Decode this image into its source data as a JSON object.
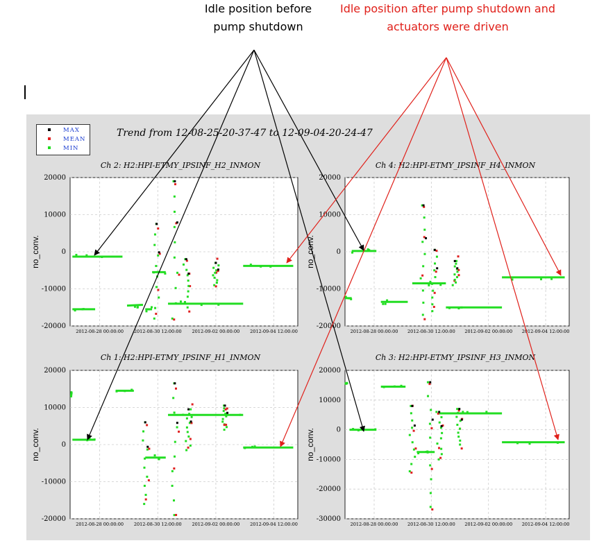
{
  "annotations": {
    "black_note": [
      "Idle position before",
      "pump shutdown"
    ],
    "red_note": [
      "Idle position after pump shutdown and",
      "actuators were driven"
    ],
    "colors": {
      "black_note": "#000000",
      "red_note": "#e0201a"
    }
  },
  "legend": [
    {
      "label": "MAX",
      "color": "#000000"
    },
    {
      "label": "MEAN",
      "color": "#e02020"
    },
    {
      "label": "MIN",
      "color": "#22dd22"
    }
  ],
  "trend_title": "Trend from 12-08-25-20-37-47 to 12-09-04-20-24-47",
  "x_tick_labels": [
    "2012-08-28 00:00:00",
    "2012-08-30 12:00:00",
    "2012-09-02 00:00:00",
    "2012-09-04 12:00:00"
  ],
  "chart_data": [
    {
      "type": "scatter",
      "title": "Ch 2: H2:HPI-ETMY_IPSINF_H2_INMON",
      "ylabel": "no_conv.",
      "ylim": [
        -20000,
        20000
      ],
      "yticks": [
        20000,
        10000,
        0,
        -10000,
        -20000
      ],
      "x_days_range": [
        0,
        10
      ],
      "grid": true,
      "segments": [
        {
          "x": [
            0.1,
            1.1
          ],
          "y": [
            -15500,
            -15500
          ]
        },
        {
          "x": [
            0.1,
            2.3
          ],
          "y": [
            -1300,
            -1300
          ]
        },
        {
          "x": [
            2.5,
            3.2
          ],
          "y": [
            -14500,
            -14300
          ]
        },
        {
          "x": [
            3.3,
            3.6
          ],
          "y": [
            -15500,
            -15500
          ]
        },
        {
          "x": [
            3.6,
            4.2
          ],
          "y": [
            -5500,
            -5500
          ]
        },
        {
          "x": [
            4.3,
            7.6
          ],
          "y": [
            -14000,
            -14000
          ]
        },
        {
          "x": [
            7.6,
            9.8
          ],
          "y": [
            -3800,
            -3800
          ]
        }
      ],
      "spikes": [
        {
          "x": 3.8,
          "max": 7500,
          "min": -18000
        },
        {
          "x": 4.6,
          "max": 19000,
          "min": -18000
        },
        {
          "x": 5.1,
          "max": -2000,
          "min": -15000
        },
        {
          "x": 6.4,
          "max": -3000,
          "min": -9000
        }
      ]
    },
    {
      "type": "scatter",
      "title": "Ch 4: H2:HPI-ETMY_IPSINF_H4_INMON",
      "ylabel": "no_conv.",
      "ylim": [
        -20000,
        20000
      ],
      "yticks": [
        20000,
        10000,
        0,
        -10000,
        -20000
      ],
      "x_days_range": [
        0,
        10
      ],
      "grid": true,
      "segments": [
        {
          "x": [
            0.0,
            0.3
          ],
          "y": [
            -12500,
            -12500
          ]
        },
        {
          "x": [
            0.3,
            1.4
          ],
          "y": [
            200,
            200
          ]
        },
        {
          "x": [
            1.6,
            2.8
          ],
          "y": [
            -13500,
            -13500
          ]
        },
        {
          "x": [
            3.0,
            4.5
          ],
          "y": [
            -8500,
            -8500
          ]
        },
        {
          "x": [
            4.5,
            7.0
          ],
          "y": [
            -15000,
            -15000
          ]
        },
        {
          "x": [
            7.0,
            9.8
          ],
          "y": [
            -6900,
            -6900
          ]
        }
      ],
      "spikes": [
        {
          "x": 3.5,
          "max": 12500,
          "min": -17000
        },
        {
          "x": 4.0,
          "max": 500,
          "min": -16000
        },
        {
          "x": 4.9,
          "max": -2500,
          "min": -9000
        }
      ]
    },
    {
      "type": "scatter",
      "title": "Ch 1: H2:HPI-ETMY_IPSINF_H1_INMON",
      "ylabel": "no_conv.",
      "ylim": [
        -20000,
        20000
      ],
      "yticks": [
        20000,
        10000,
        0,
        -10000,
        -20000
      ],
      "x_days_range": [
        0,
        10
      ],
      "grid": true,
      "segments": [
        {
          "x": [
            0.0,
            0.1
          ],
          "y": [
            13500,
            13500
          ]
        },
        {
          "x": [
            0.1,
            1.1
          ],
          "y": [
            1300,
            1300
          ]
        },
        {
          "x": [
            2.0,
            2.8
          ],
          "y": [
            14500,
            14500
          ]
        },
        {
          "x": [
            3.3,
            4.2
          ],
          "y": [
            -3500,
            -3500
          ]
        },
        {
          "x": [
            4.3,
            7.6
          ],
          "y": [
            8000,
            8000
          ]
        },
        {
          "x": [
            7.6,
            9.8
          ],
          "y": [
            -800,
            -800
          ]
        }
      ],
      "spikes": [
        {
          "x": 3.3,
          "max": 6000,
          "min": -16000
        },
        {
          "x": 4.6,
          "max": 16500,
          "min": -19000
        },
        {
          "x": 5.2,
          "max": 9500,
          "min": -1500
        },
        {
          "x": 6.8,
          "max": 10500,
          "min": 4000
        }
      ]
    },
    {
      "type": "scatter",
      "title": "Ch 3: H2:HPI-ETMY_IPSINF_H3_INMON",
      "ylabel": "no_conv.",
      "ylim": [
        -30000,
        20000
      ],
      "yticks": [
        20000,
        10000,
        0,
        -10000,
        -20000,
        -30000
      ],
      "x_days_range": [
        0,
        10
      ],
      "grid": true,
      "segments": [
        {
          "x": [
            0.0,
            0.1
          ],
          "y": [
            15500,
            15500
          ]
        },
        {
          "x": [
            0.2,
            1.4
          ],
          "y": [
            0,
            0
          ]
        },
        {
          "x": [
            1.6,
            2.7
          ],
          "y": [
            14500,
            14500
          ]
        },
        {
          "x": [
            3.2,
            4.0
          ],
          "y": [
            -7500,
            -7500
          ]
        },
        {
          "x": [
            4.2,
            7.0
          ],
          "y": [
            5500,
            5500
          ]
        },
        {
          "x": [
            7.0,
            9.8
          ],
          "y": [
            -4200,
            -4200
          ]
        }
      ],
      "spikes": [
        {
          "x": 3.0,
          "max": 8000,
          "min": -14000
        },
        {
          "x": 3.8,
          "max": 16000,
          "min": -26000
        },
        {
          "x": 4.2,
          "max": 6000,
          "min": -10000
        },
        {
          "x": 5.1,
          "max": 7000,
          "min": -5000
        }
      ]
    }
  ]
}
